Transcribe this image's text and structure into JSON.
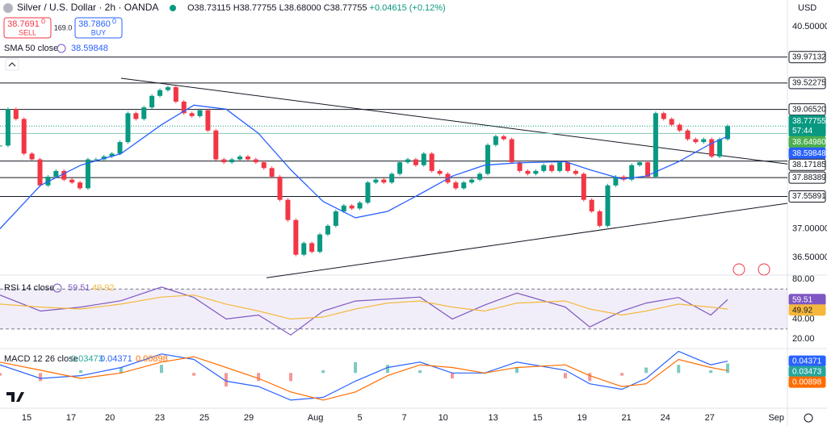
{
  "chart_data": [
    {
      "type": "candlestick",
      "title": "Silver / U.S. Dollar · 2h · OANDA",
      "ohlc": [
        "O38.73115",
        "H38.77755",
        "L38.68000",
        "C38.77755",
        "+0.04615 (+0.12%)"
      ],
      "sell": {
        "price": "38.7691",
        "sup": "0",
        "label": "SELL"
      },
      "buy": {
        "price": "38.7860",
        "sup": "0",
        "label": "BUY"
      },
      "spread": "169.0",
      "currency": "USD",
      "up_color": "#089981",
      "down_color": "#f23645",
      "xlim": [
        -1.2,
        34.25
      ],
      "xticks": [
        {
          "value": 0,
          "label": "15"
        },
        {
          "value": 2,
          "label": "17"
        },
        {
          "value": 3.75,
          "label": "20"
        },
        {
          "value": 6,
          "label": "23"
        },
        {
          "value": 8,
          "label": "25"
        },
        {
          "value": 10,
          "label": "29"
        },
        {
          "value": 13,
          "label": "Aug"
        },
        {
          "value": 15,
          "label": "5"
        },
        {
          "value": 17,
          "label": "7"
        },
        {
          "value": 18.75,
          "label": "10"
        },
        {
          "value": 21,
          "label": "13"
        },
        {
          "value": 23,
          "label": "15"
        },
        {
          "value": 25,
          "label": "19"
        },
        {
          "value": 27,
          "label": "21"
        },
        {
          "value": 28.75,
          "label": "24"
        },
        {
          "value": 30.75,
          "label": "27"
        },
        {
          "value": 33.75,
          "label": "Sep"
        }
      ],
      "ylim": [
        36.21,
        40.96
      ],
      "yticks": [
        {
          "value": 40.5,
          "label": "40.50000"
        },
        {
          "value": 37,
          "label": "37.00000"
        },
        {
          "value": 36.5,
          "label": "36.50000"
        }
      ],
      "x": [
        -1.2,
        -0.84,
        -0.48,
        -0.12,
        0.24,
        0.6,
        0.96,
        1.32,
        1.68,
        2.04,
        2.4,
        2.76,
        3.12,
        3.48,
        3.84,
        4.2,
        4.56,
        4.92,
        5.28,
        5.64,
        6,
        6.36,
        6.72,
        7.08,
        7.44,
        7.8,
        8.16,
        8.52,
        8.88,
        9.24,
        9.6,
        9.96,
        10.32,
        10.68,
        11.04,
        11.4,
        11.76,
        12.12,
        12.48,
        12.84,
        13.2,
        13.56,
        13.92,
        14.28,
        14.64,
        15,
        15.36,
        15.72,
        16.08,
        16.44,
        16.8,
        17.16,
        17.52,
        17.88,
        18.24,
        18.6,
        18.96,
        19.32,
        19.68,
        20.04,
        20.4,
        20.76,
        21.12,
        21.48,
        21.84,
        22.2,
        22.56,
        22.92,
        23.28,
        23.64,
        24,
        24.36,
        24.72,
        25.08,
        25.44,
        25.8,
        26.16,
        26.52,
        26.88,
        27.24,
        27.6,
        27.96,
        28.32,
        28.68,
        29.04,
        29.4,
        29.76,
        30.12,
        30.48,
        30.84,
        31.2,
        31.56
      ],
      "close": [
        38.44,
        39.07,
        38.9,
        38.3,
        38.2,
        37.75,
        37.9,
        38.0,
        37.85,
        37.8,
        37.7,
        38.2,
        38.2,
        38.25,
        38.3,
        38.5,
        39.0,
        38.9,
        39.1,
        39.3,
        39.4,
        39.45,
        39.2,
        39.0,
        38.95,
        39.05,
        38.7,
        38.2,
        38.15,
        38.2,
        38.25,
        38.2,
        38.15,
        38.05,
        37.9,
        37.5,
        37.15,
        36.55,
        36.75,
        36.6,
        36.9,
        37.05,
        37.3,
        37.4,
        37.35,
        37.45,
        37.8,
        37.85,
        37.8,
        37.95,
        38.15,
        38.2,
        38.1,
        38.3,
        38.0,
        37.95,
        37.8,
        37.7,
        37.8,
        37.85,
        37.95,
        38.45,
        38.6,
        38.55,
        38.15,
        38.0,
        37.95,
        38.0,
        38.1,
        38.0,
        38.15,
        38.0,
        37.95,
        37.5,
        37.3,
        37.05,
        37.75,
        37.9,
        37.85,
        38.1,
        38.15,
        37.9,
        39.0,
        38.9,
        38.8,
        38.7,
        38.55,
        38.5,
        38.55,
        38.25,
        38.55,
        38.77755
      ],
      "countdown": "57:44",
      "prev_close": {
        "value": 38.6498,
        "label": "38.64980"
      },
      "sma": {
        "name": "SMA 50 close",
        "color": "#2962ff",
        "x": [
          -1.2,
          0.62,
          2.44,
          4.25,
          6.07,
          7.53,
          8.98,
          10.44,
          11.89,
          13.35,
          14.8,
          16.25,
          17.71,
          19.16,
          20.62,
          22.07,
          24.25,
          25.35,
          26.8,
          27.89,
          29.35,
          30.8,
          31.56
        ],
        "values": [
          37.0,
          37.75,
          38.1,
          38.3,
          38.8,
          39.14,
          39.07,
          38.65,
          38.02,
          37.47,
          37.19,
          37.3,
          37.6,
          37.91,
          38.1,
          38.14,
          38.16,
          38.02,
          37.86,
          37.91,
          38.16,
          38.47,
          38.59848
        ]
      },
      "levels": [
        {
          "value": 39.97132,
          "label": "39.97132"
        },
        {
          "value": 39.52275,
          "label": "39.52275"
        },
        {
          "value": 39.0652,
          "label": "39.06520"
        },
        {
          "value": 38.17185,
          "label": "38.17185"
        },
        {
          "value": 37.88389,
          "label": "37.88389"
        },
        {
          "value": 37.55891,
          "label": "37.55891"
        }
      ],
      "trendlines": [
        {
          "x": [
            4.25,
            34.25
          ],
          "y": [
            39.605,
            38.12
          ]
        },
        {
          "x": [
            10.8,
            34.25
          ],
          "y": [
            36.15,
            37.44
          ]
        }
      ]
    },
    {
      "type": "line",
      "title": "RSI 14 close",
      "ylim": [
        10.4,
        84
      ],
      "yticks": [
        {
          "value": 80,
          "label": "80.00"
        },
        {
          "value": 40,
          "label": "40.00"
        },
        {
          "value": 20,
          "label": "20.00"
        }
      ],
      "band": [
        30,
        70
      ],
      "series": [
        {
          "color": "#7e57c2",
          "x": [
            -1.2,
            0.62,
            2.44,
            4.25,
            6.07,
            7.53,
            8.98,
            10.44,
            11.89,
            13.35,
            14.8,
            16.25,
            17.71,
            19.16,
            20.62,
            22.07,
            24.25,
            25.35,
            26.8,
            27.89,
            29.35,
            30.8,
            31.56
          ],
          "values": [
            64,
            48,
            52,
            58.4,
            72,
            61.6,
            40,
            44,
            24,
            48,
            58,
            60,
            62,
            40,
            54,
            66,
            52,
            32,
            48,
            56,
            61.6,
            44,
            59.51
          ]
        },
        {
          "color": "#f5b83d",
          "x": [
            -1.2,
            0.62,
            2.44,
            4.25,
            6.07,
            7.53,
            8.98,
            10.44,
            11.89,
            13.35,
            14.8,
            16.25,
            17.71,
            19.16,
            20.62,
            22.07,
            24.25,
            25.35,
            26.8,
            27.89,
            29.35,
            30.8,
            31.56
          ],
          "values": [
            55,
            52,
            50,
            55,
            62,
            64,
            55,
            48,
            40,
            42,
            50,
            56,
            58,
            52,
            48,
            56,
            58,
            50,
            44,
            48,
            55,
            52,
            49.92
          ]
        }
      ]
    },
    {
      "type": "macd",
      "title": "MACD 12 26 close",
      "ylim": [
        -0.13,
        0.09
      ],
      "series": [
        {
          "color": "#26a69a",
          "negative_color": "#ef5350",
          "x": [
            -1.2,
            0.62,
            2.44,
            4.25,
            6.07,
            7.53,
            8.98,
            10.44,
            11.89,
            13.35,
            14.8,
            16.25,
            17.71,
            19.16,
            20.62,
            22.07,
            24.25,
            25.35,
            26.8,
            27.89,
            29.35,
            30.8,
            31.56
          ],
          "values": [
            -0.01,
            -0.03,
            0.01,
            0.02,
            0.03,
            -0.01,
            -0.05,
            -0.03,
            -0.03,
            0.01,
            0.04,
            0.03,
            0.01,
            -0.02,
            0,
            0.02,
            -0.02,
            -0.03,
            -0.01,
            0.02,
            0.03,
            0.01,
            0.03473
          ]
        },
        {
          "color": "#2962ff",
          "x": [
            -1.2,
            0.62,
            2.44,
            4.25,
            6.07,
            7.53,
            8.98,
            10.44,
            11.89,
            13.35,
            14.8,
            16.25,
            17.71,
            19.16,
            20.62,
            22.07,
            24.25,
            25.35,
            26.8,
            27.89,
            29.35,
            30.8,
            31.56
          ],
          "values": [
            0.03,
            -0.02,
            -0.01,
            0.02,
            0.07,
            0.05,
            -0.03,
            -0.05,
            -0.1,
            -0.09,
            -0.03,
            0.02,
            0.04,
            0.0,
            0.0,
            0.04,
            0.01,
            -0.04,
            -0.06,
            -0.02,
            0.08,
            0.03,
            0.04371
          ]
        },
        {
          "color": "#ff6d00",
          "x": [
            -1.2,
            0.62,
            2.44,
            4.25,
            6.07,
            7.53,
            8.98,
            10.44,
            11.89,
            13.35,
            14.8,
            16.25,
            17.71,
            19.16,
            20.62,
            22.07,
            24.25,
            25.35,
            26.8,
            27.89,
            29.35,
            30.8,
            31.56
          ],
          "values": [
            0.04,
            0.01,
            -0.02,
            0.0,
            0.04,
            0.06,
            0.02,
            -0.02,
            -0.07,
            -0.1,
            -0.07,
            -0.01,
            0.03,
            0.02,
            0.0,
            0.02,
            0.03,
            -0.01,
            -0.05,
            -0.04,
            0.05,
            0.02,
            0.00898
          ]
        }
      ]
    }
  ]
}
